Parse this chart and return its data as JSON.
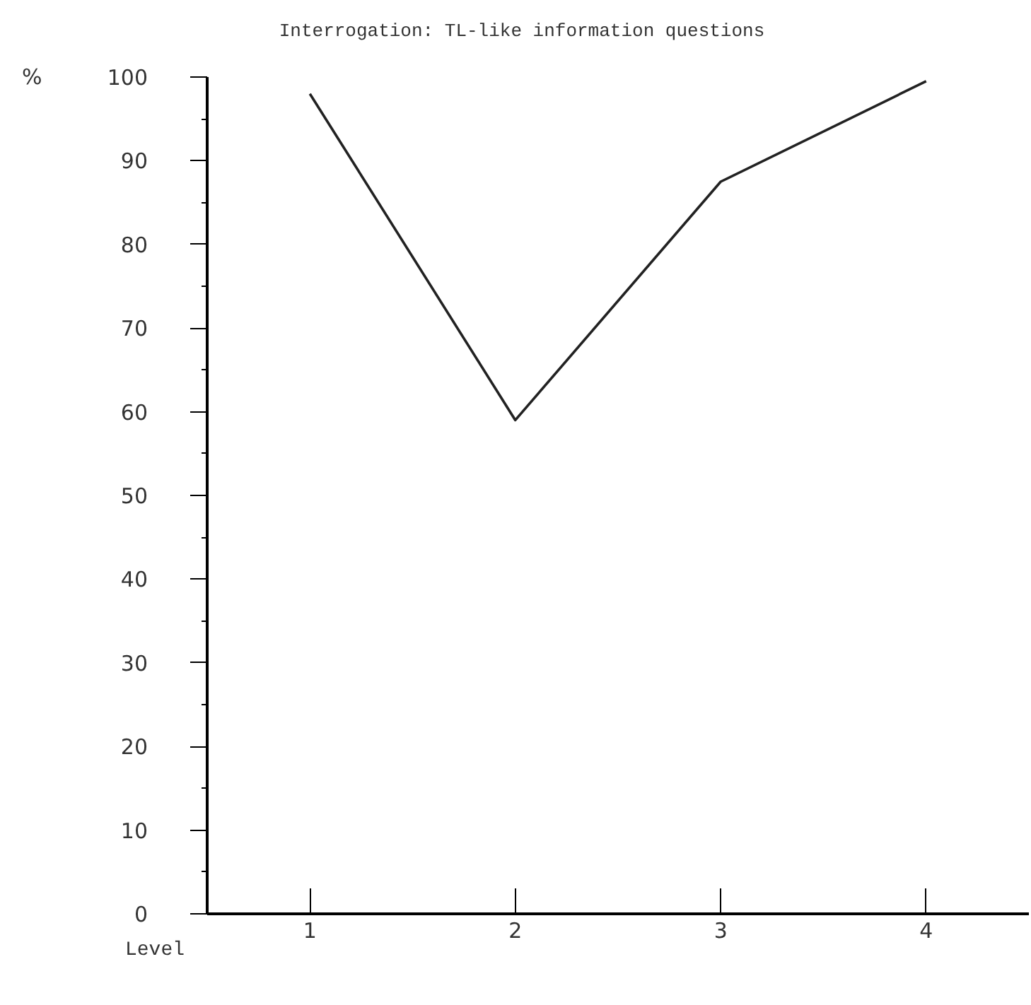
{
  "chart_data": {
    "type": "line",
    "title": "Interrogation: TL-like information questions",
    "xlabel": "Level",
    "ylabel": "%",
    "x": [
      1,
      2,
      3,
      4
    ],
    "series": [
      {
        "color": "#222222",
        "values": [
          98,
          59,
          87.5,
          99.5
        ]
      }
    ],
    "xlim": [
      0.5,
      4.5
    ],
    "xticks": [
      1,
      2,
      3,
      4
    ],
    "ylim": [
      0,
      100
    ],
    "yticks": [
      0,
      10,
      20,
      30,
      40,
      50,
      60,
      70,
      80,
      90,
      100
    ],
    "grid": false,
    "marker": "none",
    "line_style": "solid"
  }
}
